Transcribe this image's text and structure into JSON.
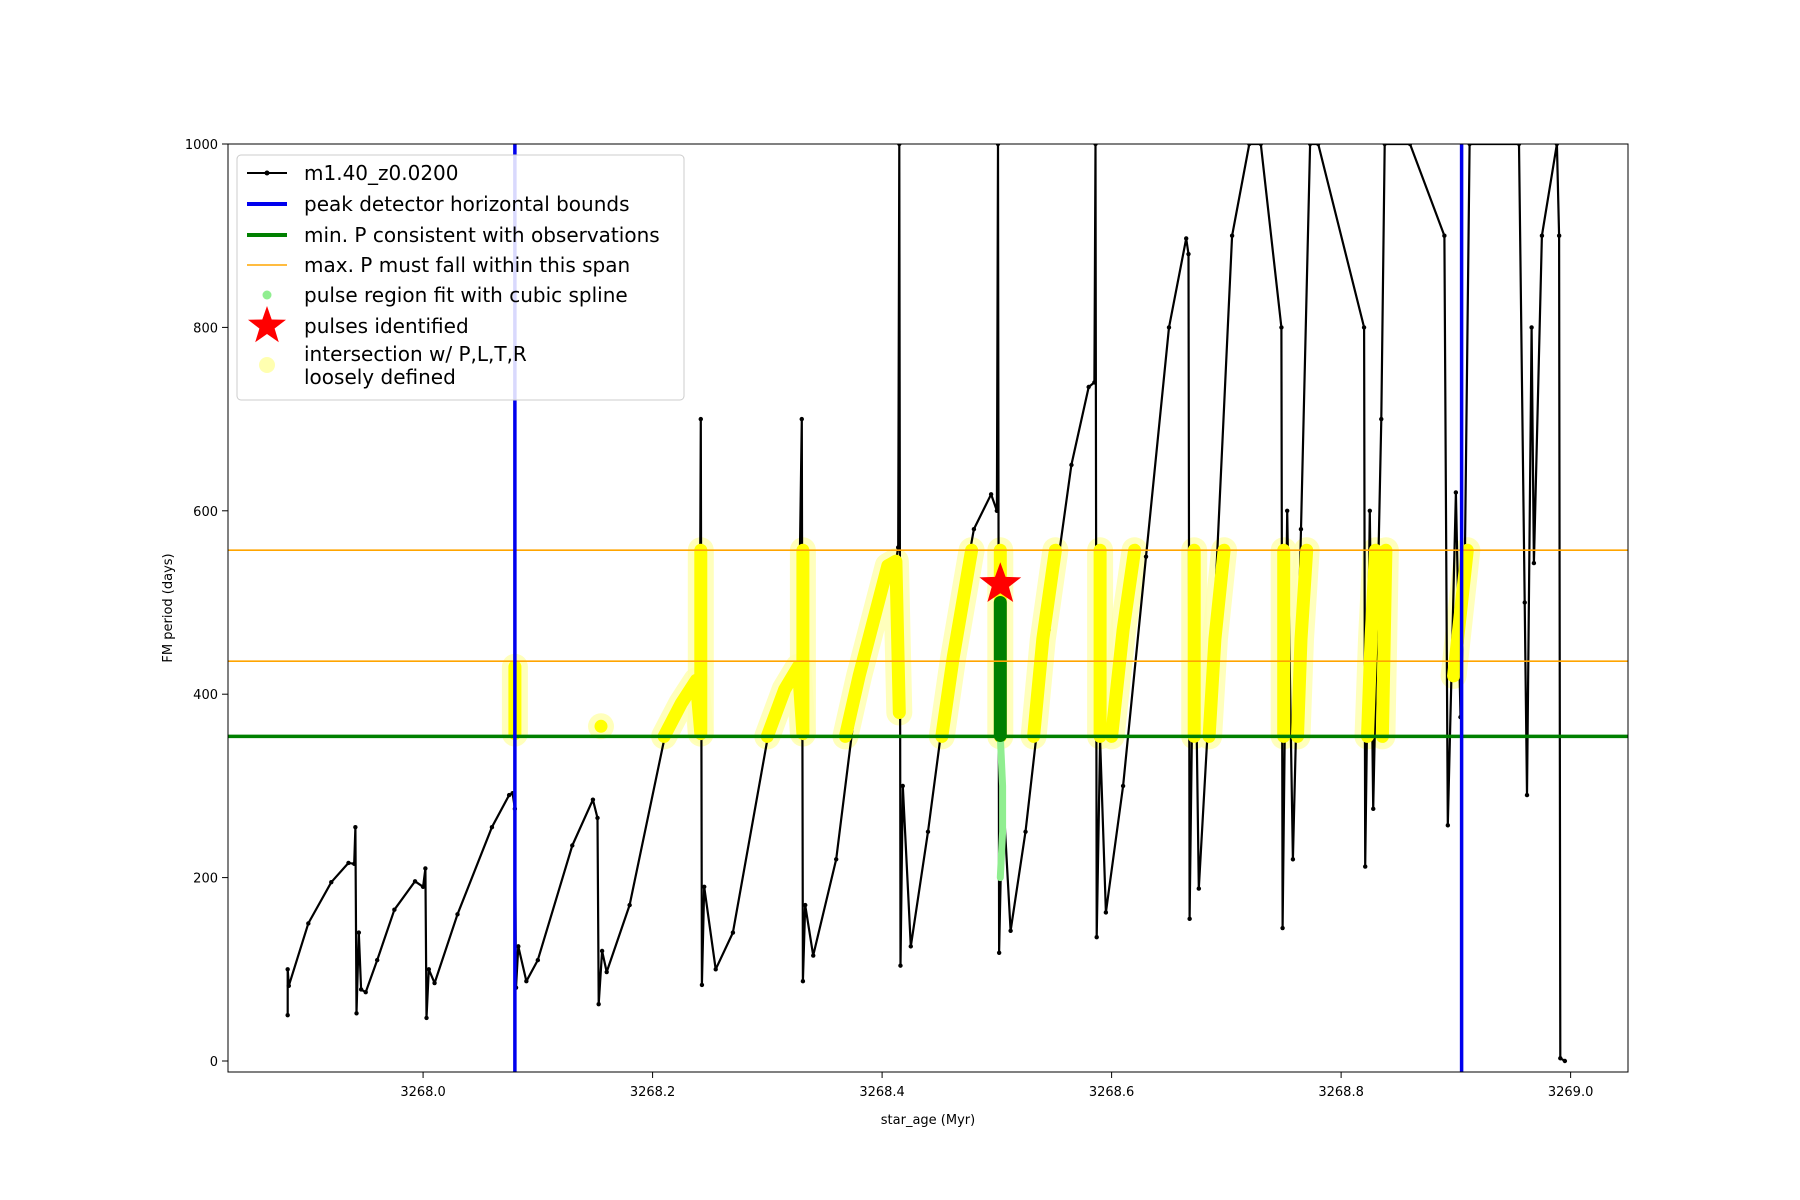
{
  "chart_data": {
    "type": "line",
    "title": "",
    "xlabel": "star_age (Myr)",
    "ylabel": "FM period (days)",
    "xlim": [
      3267.83,
      3269.05
    ],
    "ylim": [
      -12,
      1000
    ],
    "x_ticks": [
      "3268.0",
      "3268.2",
      "3268.4",
      "3268.6",
      "3268.8",
      "3269.0"
    ],
    "y_ticks": [
      "0",
      "200",
      "400",
      "600",
      "800",
      "1000"
    ],
    "legend_position": "upper-left",
    "colors": {
      "model": "#000000",
      "bounds": "#0000ee",
      "min_p": "#008000",
      "max_p": "#ffa500",
      "spline": "#90ee90",
      "pulse": "#ff0000",
      "intersection": "#ffff00",
      "loose": "#ffffb0"
    },
    "legend": [
      {
        "label": "m1.40_z0.0200",
        "style": "line-dot"
      },
      {
        "label": "peak detector horizontal bounds",
        "style": "blue-line"
      },
      {
        "label": "min. P consistent with observations",
        "style": "green-line"
      },
      {
        "label": "max. P must fall within this span",
        "style": "orange-line"
      },
      {
        "label": "pulse region fit with cubic spline",
        "style": "green-dot"
      },
      {
        "label": "pulses identified",
        "style": "star"
      },
      {
        "label": "intersection w/ P,L,T,R\nloosely defined",
        "style": "yellow-dot"
      }
    ],
    "vertical_bounds_x": [
      3268.08,
      3268.905
    ],
    "min_p_y": 354,
    "max_p_span_y": [
      436,
      557
    ],
    "pulse_identified": {
      "x": 3268.503,
      "y": 520
    },
    "model_track": [
      [
        3267.882,
        50
      ],
      [
        3267.882,
        100
      ],
      [
        3267.883,
        82
      ],
      [
        3267.9,
        150
      ],
      [
        3267.92,
        195
      ],
      [
        3267.935,
        216
      ],
      [
        3267.94,
        215
      ],
      [
        3267.941,
        255
      ],
      [
        3267.942,
        52
      ],
      [
        3267.944,
        140
      ],
      [
        3267.946,
        78
      ],
      [
        3267.95,
        75
      ],
      [
        3267.96,
        110
      ],
      [
        3267.975,
        165
      ],
      [
        3267.993,
        196
      ],
      [
        3268.0,
        190
      ],
      [
        3268.002,
        210
      ],
      [
        3268.003,
        47
      ],
      [
        3268.005,
        100
      ],
      [
        3268.01,
        85
      ],
      [
        3268.03,
        160
      ],
      [
        3268.06,
        255
      ],
      [
        3268.075,
        290
      ],
      [
        3268.078,
        292
      ],
      [
        3268.08,
        275
      ],
      [
        3268.081,
        80
      ],
      [
        3268.083,
        125
      ],
      [
        3268.09,
        87
      ],
      [
        3268.1,
        110
      ],
      [
        3268.13,
        235
      ],
      [
        3268.148,
        285
      ],
      [
        3268.152,
        265
      ],
      [
        3268.153,
        62
      ],
      [
        3268.156,
        120
      ],
      [
        3268.16,
        97
      ],
      [
        3268.18,
        170
      ],
      [
        3268.21,
        350
      ],
      [
        3268.225,
        390
      ],
      [
        3268.238,
        415
      ],
      [
        3268.241,
        395
      ],
      [
        3268.242,
        700
      ],
      [
        3268.243,
        83
      ],
      [
        3268.245,
        190
      ],
      [
        3268.255,
        100
      ],
      [
        3268.27,
        140
      ],
      [
        3268.3,
        350
      ],
      [
        3268.315,
        405
      ],
      [
        3268.327,
        430
      ],
      [
        3268.33,
        700
      ],
      [
        3268.331,
        87
      ],
      [
        3268.333,
        170
      ],
      [
        3268.34,
        115
      ],
      [
        3268.36,
        220
      ],
      [
        3268.38,
        420
      ],
      [
        3268.405,
        540
      ],
      [
        3268.412,
        545
      ],
      [
        3268.414,
        560
      ],
      [
        3268.415,
        1000
      ],
      [
        3268.416,
        104
      ],
      [
        3268.418,
        300
      ],
      [
        3268.425,
        125
      ],
      [
        3268.44,
        250
      ],
      [
        3268.46,
        440
      ],
      [
        3268.48,
        580
      ],
      [
        3268.495,
        618
      ],
      [
        3268.5,
        600
      ],
      [
        3268.501,
        1000
      ],
      [
        3268.502,
        118
      ],
      [
        3268.505,
        300
      ],
      [
        3268.512,
        142
      ],
      [
        3268.525,
        250
      ],
      [
        3268.545,
        470
      ],
      [
        3268.565,
        650
      ],
      [
        3268.58,
        735
      ],
      [
        3268.585,
        740
      ],
      [
        3268.586,
        1000
      ],
      [
        3268.587,
        135
      ],
      [
        3268.59,
        350
      ],
      [
        3268.595,
        162
      ],
      [
        3268.61,
        300
      ],
      [
        3268.63,
        550
      ],
      [
        3268.65,
        800
      ],
      [
        3268.665,
        897
      ],
      [
        3268.667,
        880
      ],
      [
        3268.668,
        155
      ],
      [
        3268.672,
        560
      ],
      [
        3268.676,
        188
      ],
      [
        3268.69,
        500
      ],
      [
        3268.705,
        900
      ],
      [
        3268.72,
        1000
      ],
      [
        3268.73,
        1000
      ],
      [
        3268.748,
        800
      ],
      [
        3268.749,
        145
      ],
      [
        3268.753,
        600
      ],
      [
        3268.758,
        220
      ],
      [
        3268.765,
        580
      ],
      [
        3268.773,
        1000
      ],
      [
        3268.78,
        1000
      ],
      [
        3268.82,
        800
      ],
      [
        3268.821,
        212
      ],
      [
        3268.825,
        600
      ],
      [
        3268.828,
        275
      ],
      [
        3268.835,
        700
      ],
      [
        3268.838,
        1000
      ],
      [
        3268.86,
        1000
      ],
      [
        3268.89,
        900
      ],
      [
        3268.893,
        257
      ],
      [
        3268.9,
        620
      ],
      [
        3268.904,
        375
      ],
      [
        3268.908,
        560
      ],
      [
        3268.912,
        1000
      ],
      [
        3268.955,
        1000
      ],
      [
        3268.96,
        500
      ],
      [
        3268.962,
        290
      ],
      [
        3268.966,
        800
      ],
      [
        3268.968,
        543
      ],
      [
        3268.975,
        900
      ],
      [
        3268.988,
        1000
      ],
      [
        3268.99,
        900
      ],
      [
        3268.991,
        3
      ],
      [
        3268.995,
        0
      ]
    ],
    "intersection_segments": [
      [
        [
          3268.08,
          357
        ],
        [
          3268.08,
          430
        ]
      ],
      [
        [
          3268.155,
          365
        ],
        [
          3268.155,
          365
        ]
      ],
      [
        [
          3268.21,
          354
        ],
        [
          3268.225,
          390
        ],
        [
          3268.238,
          415
        ],
        [
          3268.242,
          357
        ]
      ],
      [
        [
          3268.242,
          360
        ],
        [
          3268.242,
          557
        ]
      ],
      [
        [
          3268.3,
          354
        ],
        [
          3268.315,
          405
        ],
        [
          3268.327,
          430
        ],
        [
          3268.331,
          357
        ]
      ],
      [
        [
          3268.331,
          360
        ],
        [
          3268.331,
          557
        ]
      ],
      [
        [
          3268.368,
          354
        ],
        [
          3268.38,
          420
        ],
        [
          3268.405,
          540
        ],
        [
          3268.412,
          545
        ],
        [
          3268.415,
          380
        ]
      ],
      [
        [
          3268.452,
          354
        ],
        [
          3268.462,
          440
        ],
        [
          3268.478,
          557
        ]
      ],
      [
        [
          3268.503,
          354
        ],
        [
          3268.503,
          557
        ]
      ],
      [
        [
          3268.532,
          354
        ],
        [
          3268.54,
          460
        ],
        [
          3268.551,
          557
        ]
      ],
      [
        [
          3268.59,
          354
        ],
        [
          3268.59,
          557
        ]
      ],
      [
        [
          3268.6,
          354
        ],
        [
          3268.61,
          470
        ],
        [
          3268.62,
          557
        ]
      ],
      [
        [
          3268.672,
          354
        ],
        [
          3268.672,
          557
        ]
      ],
      [
        [
          3268.685,
          354
        ],
        [
          3268.69,
          460
        ],
        [
          3268.698,
          557
        ]
      ],
      [
        [
          3268.75,
          354
        ],
        [
          3268.75,
          557
        ]
      ],
      [
        [
          3268.762,
          354
        ],
        [
          3268.765,
          460
        ],
        [
          3268.77,
          557
        ]
      ],
      [
        [
          3268.823,
          354
        ],
        [
          3268.826,
          460
        ],
        [
          3268.83,
          557
        ]
      ],
      [
        [
          3268.836,
          354
        ],
        [
          3268.839,
          557
        ]
      ],
      [
        [
          3268.898,
          420
        ],
        [
          3268.905,
          500
        ],
        [
          3268.91,
          557
        ]
      ]
    ],
    "spline_points": [
      [
        3268.503,
        200
      ],
      [
        3268.505,
        250
      ],
      [
        3268.505,
        300
      ],
      [
        3268.503,
        354
      ],
      [
        3268.503,
        420
      ],
      [
        3268.503,
        480
      ]
    ],
    "green_segment": [
      [
        3268.503,
        355
      ],
      [
        3268.503,
        500
      ]
    ]
  }
}
